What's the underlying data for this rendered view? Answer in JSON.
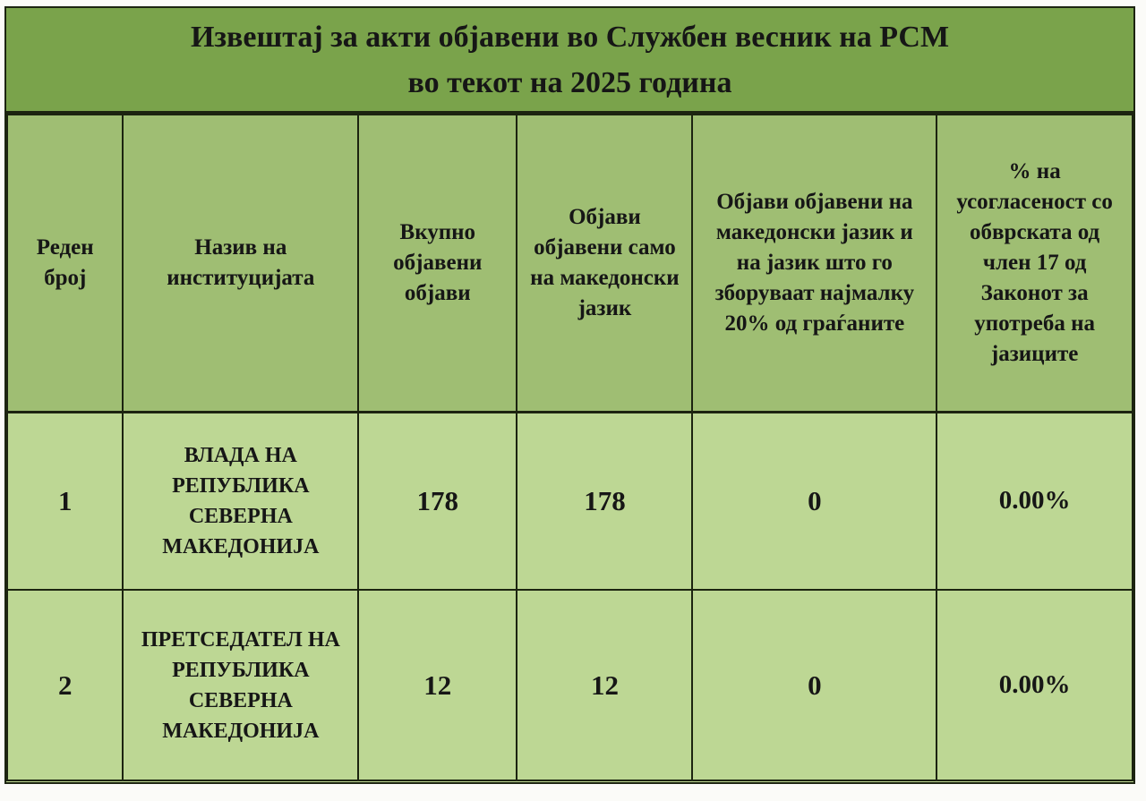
{
  "title": {
    "line1": "Извештај за акти објавени во Службен весник на РСМ",
    "line2": "во текот на 2025 година"
  },
  "table": {
    "headers": [
      "Реден број",
      "Назив на институцијата",
      "Вкупно објавени објави",
      "Објави објавени само на македонски јазик",
      "Објави објавени на македонски јазик и на јазик што го зборуваат најмалку 20% од граѓаните",
      "% на усогласеност со обврската од член 17 од Законот за употреба на јазиците"
    ],
    "rows": [
      {
        "number": "1",
        "institution": "ВЛАДА НА РЕПУБЛИКА СЕВЕРНА МАКЕДОНИЈА",
        "total_published": "178",
        "mk_only": "178",
        "mk_and_20pct": "0",
        "compliance_pct": "0.00%"
      },
      {
        "number": "2",
        "institution": "ПРЕТСЕДАТЕЛ НА РЕПУБЛИКА СЕВЕРНА МАКЕДОНИЈА",
        "total_published": "12",
        "mk_only": "12",
        "mk_and_20pct": "0",
        "compliance_pct": "0.00%"
      }
    ]
  },
  "colors": {
    "title_bg": "#7aa34b",
    "header_bg": "#9fbe73",
    "row_bg": "#bdd794",
    "border": "#1c2410",
    "text": "#161616",
    "page_bg": "#fbfbf8"
  }
}
